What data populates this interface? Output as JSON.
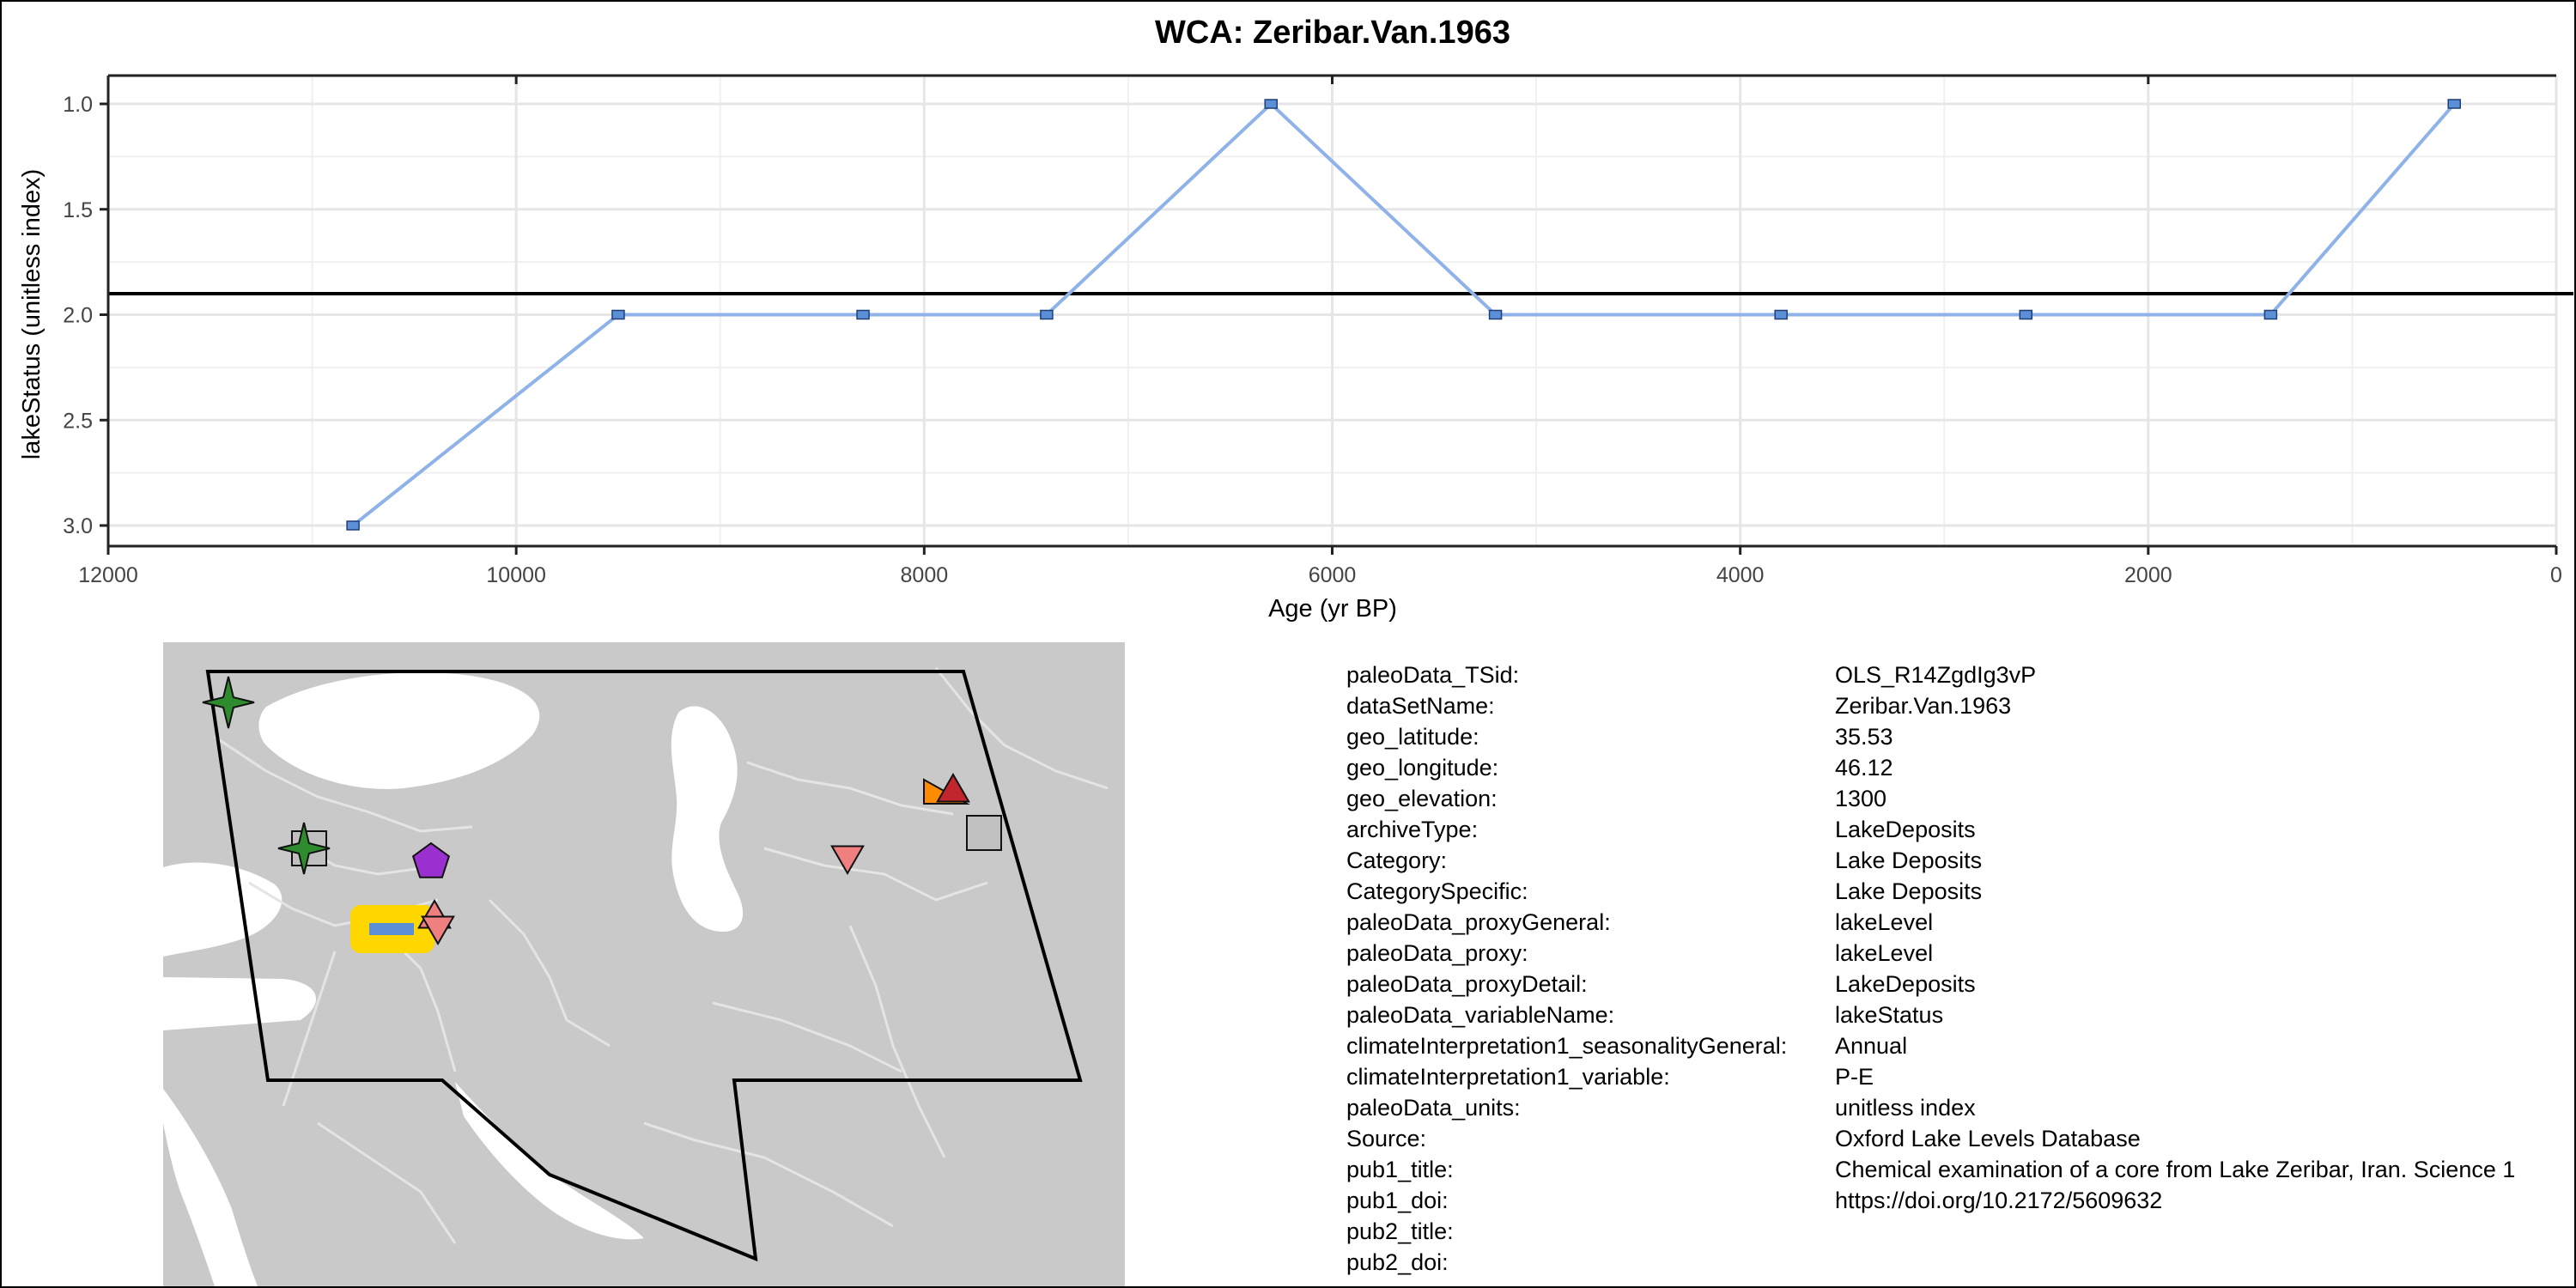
{
  "chart_data": {
    "type": "line",
    "title": "WCA: Zeribar.Van.1963",
    "xlabel": "Age (yr BP)",
    "ylabel": "lakeStatus (unitless index)",
    "xlim": [
      12000,
      0
    ],
    "ylim": [
      3.0,
      1.0
    ],
    "x_reversed": true,
    "y_reversed": true,
    "grid": true,
    "x_ticks": [
      12000,
      10000,
      8000,
      6000,
      4000,
      2000,
      0
    ],
    "x_tick_labels": [
      "12000",
      "10000",
      "8000",
      "6000",
      "4000",
      "2000",
      "0"
    ],
    "y_ticks": [
      1.0,
      1.5,
      2.0,
      2.5,
      3.0
    ],
    "y_tick_labels": [
      "1.0",
      "1.5",
      "2.0",
      "2.5",
      "3.0"
    ],
    "reference_line_y": 1.9,
    "line_color": "#8fb3e8",
    "marker_color": "#5b8fd8",
    "series": [
      {
        "x": [
          10800,
          9500,
          8300,
          7400,
          6300,
          5200,
          3800,
          2600,
          1400,
          500
        ],
        "y": [
          3.0,
          2.0,
          2.0,
          2.0,
          1.0,
          2.0,
          2.0,
          2.0,
          2.0,
          1.0
        ]
      }
    ]
  },
  "map": {
    "land_color": "#c9c9c9",
    "water_color": "#ffffff",
    "border_color": "#e2e2e2",
    "highlight_color": "#ffd700",
    "highlight_bar_color": "#5b8fd8",
    "markers": [
      {
        "shape": "star4",
        "color": "#2e8b2e"
      },
      {
        "shape": "square",
        "color": "#c0c0c0"
      },
      {
        "shape": "star4",
        "color": "#2e8b2e"
      },
      {
        "shape": "pentagon",
        "color": "#9b30d0"
      },
      {
        "shape": "triangle-up",
        "color": "#f08080"
      },
      {
        "shape": "triangle-down",
        "color": "#f08080"
      },
      {
        "shape": "triangle-down",
        "color": "#f08080"
      },
      {
        "shape": "triangle-right",
        "color": "#ff8c00"
      },
      {
        "shape": "triangle-up",
        "color": "#c0262c"
      },
      {
        "shape": "square",
        "color": "#c0c0c0"
      }
    ]
  },
  "metadata": [
    {
      "key": "paleoData_TSid:",
      "value": "OLS_R14ZgdIg3vP"
    },
    {
      "key": "dataSetName:",
      "value": "Zeribar.Van.1963"
    },
    {
      "key": "geo_latitude:",
      "value": "35.53"
    },
    {
      "key": "geo_longitude:",
      "value": "46.12"
    },
    {
      "key": "geo_elevation:",
      "value": "1300"
    },
    {
      "key": "archiveType:",
      "value": "LakeDeposits"
    },
    {
      "key": "Category:",
      "value": "Lake Deposits"
    },
    {
      "key": "CategorySpecific:",
      "value": "Lake Deposits"
    },
    {
      "key": "paleoData_proxyGeneral:",
      "value": "lakeLevel"
    },
    {
      "key": "paleoData_proxy:",
      "value": "lakeLevel"
    },
    {
      "key": "paleoData_proxyDetail:",
      "value": "LakeDeposits"
    },
    {
      "key": "paleoData_variableName:",
      "value": "lakeStatus"
    },
    {
      "key": "climateInterpretation1_seasonalityGeneral:",
      "value": "Annual"
    },
    {
      "key": "climateInterpretation1_variable:",
      "value": "P-E"
    },
    {
      "key": "paleoData_units:",
      "value": "unitless index"
    },
    {
      "key": "Source:",
      "value": "Oxford Lake Levels Database"
    },
    {
      "key": "pub1_title:",
      "value": "Chemical examination of a core from Lake Zeribar, Iran. Science 1"
    },
    {
      "key": "pub1_doi:",
      "value": "https://doi.org/10.2172/5609632"
    },
    {
      "key": "pub2_title:",
      "value": ""
    },
    {
      "key": "pub2_doi:",
      "value": ""
    }
  ]
}
